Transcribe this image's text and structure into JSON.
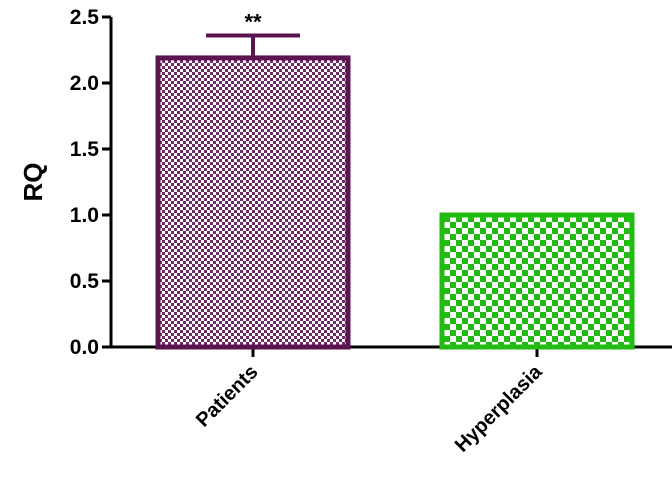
{
  "chart_data": {
    "type": "bar",
    "title": "",
    "xlabel": "",
    "ylabel": "RQ",
    "ylim": [
      0,
      2.5
    ],
    "yticks": [
      0.0,
      0.5,
      1.0,
      1.5,
      2.0,
      2.5
    ],
    "ytick_labels": [
      "0.0",
      "0.5",
      "1.0",
      "1.5",
      "2.0",
      "2.5"
    ],
    "categories": [
      "Patients",
      "Hyperplasia"
    ],
    "values": [
      2.19,
      1.0
    ],
    "error_upper": [
      2.36,
      null
    ],
    "annotations": [
      "**",
      ""
    ],
    "colors": [
      "#5a1450",
      "#22bb11"
    ],
    "grid": false,
    "legend": "none"
  }
}
